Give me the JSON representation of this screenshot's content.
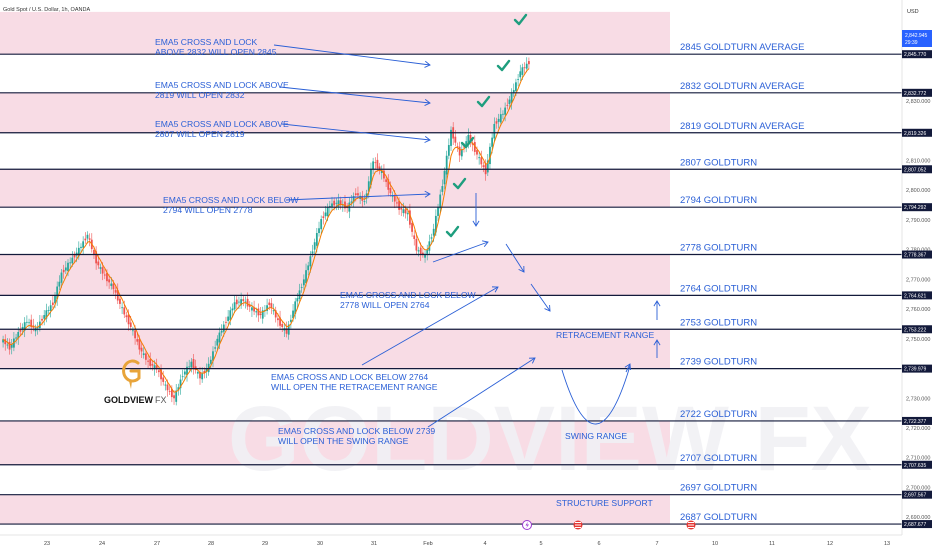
{
  "header": {
    "symbol": "Gold Spot / U.S. Dollar, 1h, OANDA",
    "currency": "USD"
  },
  "price_tag": {
    "price": "2,842.945",
    "countdown": "29:39"
  },
  "watermark": "GOLDVIEW FX",
  "logo": {
    "name_bold": "GOLDVIEW",
    "name_light": "FX"
  },
  "colors": {
    "zone": "#f8dce5",
    "level_line": "#131a3b",
    "text_blue": "#2a5fd6",
    "candle_up": "#26a69a",
    "candle_down": "#ef5350",
    "ema": "#f57c00",
    "check": "#1e9e7e",
    "logo_gold": "#e8a43a"
  },
  "levels": [
    {
      "price": 2845.77,
      "tag": "2,845.770",
      "label": "2845 GOLDTURN AVERAGE"
    },
    {
      "price": 2832.772,
      "tag": "2,832.772",
      "label": "2832 GOLDTURN AVERAGE"
    },
    {
      "price": 2819.326,
      "tag": "2,819.326",
      "label": "2819 GOLDTURN AVERAGE"
    },
    {
      "price": 2807.052,
      "tag": "2,807.052",
      "label": "2807 GOLDTURN"
    },
    {
      "price": 2794.292,
      "tag": "2,794.292",
      "label": "2794 GOLDTURN"
    },
    {
      "price": 2778.367,
      "tag": "2,778.367",
      "label": "2778 GOLDTURN"
    },
    {
      "price": 2764.621,
      "tag": "2,764.621",
      "label": "2764 GOLDTURN"
    },
    {
      "price": 2753.222,
      "tag": "2,753.222",
      "label": "2753 GOLDTURN"
    },
    {
      "price": 2739.979,
      "tag": "2,739.979",
      "label": "2739 GOLDTURN"
    },
    {
      "price": 2722.377,
      "tag": "2,722.377",
      "label": "2722 GOLDTURN"
    },
    {
      "price": 2707.635,
      "tag": "2,707.635",
      "label": "2707 GOLDTURN"
    },
    {
      "price": 2697.567,
      "tag": "2,697.567",
      "label": "2697 GOLDTURN"
    },
    {
      "price": 2687.677,
      "tag": "2,687.677",
      "label": "2687 GOLDTURN"
    }
  ],
  "zones": [
    [
      2845.77,
      2860
    ],
    [
      2819.326,
      2832.772
    ],
    [
      2794.292,
      2807.052
    ],
    [
      2764.621,
      2778.367
    ],
    [
      2739.979,
      2753.222
    ],
    [
      2707.635,
      2722.377
    ],
    [
      2687.677,
      2697.567
    ]
  ],
  "annotations": [
    {
      "lines": [
        "EMA5 CROSS AND LOCK",
        "ABOVE 2832 WILL OPEN 2845"
      ]
    },
    {
      "lines": [
        "EMA5 CROSS AND LOCK ABOVE",
        "2819  WILL OPEN 2832"
      ]
    },
    {
      "lines": [
        "EMA5 CROSS AND LOCK ABOVE",
        "2807 WILL OPEN 2819"
      ]
    },
    {
      "lines": [
        "EMA5 CROSS AND LOCK BELOW",
        "2794 WILL OPEN 2778"
      ]
    },
    {
      "lines": [
        "EMA5 CROSS AND LOCK BELOW",
        "2778 WILL OPEN 2764"
      ]
    },
    {
      "lines": [
        "EMA5 CROSS AND LOCK BELOW 2764",
        "WILL OPEN THE RETRACEMENT RANGE"
      ]
    },
    {
      "lines": [
        "EMA5 CROSS AND LOCK BELOW 2739",
        "WILL OPEN THE SWING RANGE"
      ]
    }
  ],
  "range_labels": {
    "retracement": "RETRACEMENT RANGE",
    "swing": "SWING RANGE",
    "structure": "STRUCTURE SUPPORT"
  },
  "chart_data": {
    "type": "line",
    "title": "Gold Spot / U.S. Dollar, 1h, OANDA",
    "xlabel": "",
    "ylabel": "",
    "x_ticks": [
      "23",
      "24",
      "27",
      "28",
      "29",
      "30",
      "31",
      "Feb",
      "4",
      "5",
      "6",
      "7",
      "10",
      "11",
      "12",
      "13"
    ],
    "y_ticks": [
      2690,
      2700,
      2710,
      2720,
      2730,
      2740,
      2750,
      2760,
      2770,
      2780,
      2790,
      2800,
      2810,
      2820,
      2830
    ],
    "ylim": [
      2684,
      2864
    ],
    "grid": false,
    "series": [
      {
        "values": [
          2750,
          2747,
          2752,
          2756,
          2753,
          2758,
          2762,
          2772,
          2776,
          2780,
          2785,
          2776,
          2771,
          2767,
          2760,
          2754,
          2747,
          2742,
          2740,
          2734,
          2730,
          2738,
          2742,
          2737,
          2741,
          2750,
          2756,
          2762,
          2763,
          2760,
          2758,
          2762,
          2756,
          2752,
          2762,
          2770,
          2780,
          2790,
          2795,
          2796,
          2794,
          2799,
          2796,
          2810,
          2806,
          2799,
          2794,
          2792,
          2780,
          2778,
          2787,
          2802,
          2820,
          2812,
          2818,
          2812,
          2806,
          2822,
          2826,
          2832,
          2840,
          2843
        ]
      }
    ]
  }
}
